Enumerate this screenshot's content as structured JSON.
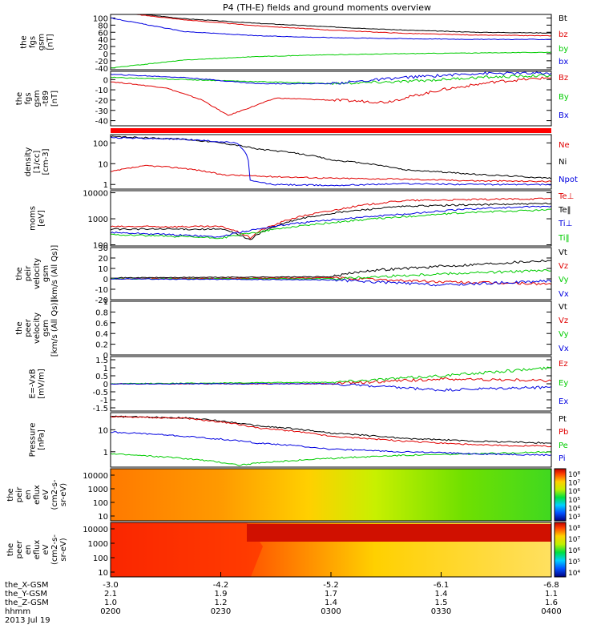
{
  "title": "P4 (TH-E) fields and ground moments overview",
  "colors": {
    "black": "#000000",
    "red": "#e00000",
    "green": "#00cc00",
    "blue": "#0000e0",
    "band": "#ff0000"
  },
  "chart_data": [
    {
      "id": "p1",
      "type": "line",
      "ylabel": [
        "the",
        "fgs",
        "gsm",
        "[nT]"
      ],
      "ylim": [
        -45,
        110
      ],
      "yticks": [
        100,
        80,
        60,
        40,
        20,
        0,
        -20,
        -40
      ],
      "series": [
        {
          "name": "Bt",
          "color": "black",
          "x": [
            0,
            20,
            40,
            60,
            80,
            100,
            120
          ],
          "y": [
            120,
            98,
            85,
            75,
            66,
            60,
            58
          ]
        },
        {
          "name": "bz",
          "color": "red",
          "x": [
            0,
            20,
            40,
            60,
            80,
            100,
            120
          ],
          "y": [
            118,
            95,
            78,
            66,
            57,
            52,
            50
          ]
        },
        {
          "name": "by",
          "color": "green",
          "x": [
            0,
            20,
            40,
            60,
            80,
            100,
            120
          ],
          "y": [
            -40,
            -18,
            -8,
            -3,
            0,
            2,
            4
          ]
        },
        {
          "name": "bx",
          "color": "blue",
          "x": [
            0,
            20,
            40,
            60,
            80,
            100,
            120
          ],
          "y": [
            100,
            62,
            50,
            45,
            42,
            40,
            40
          ]
        }
      ]
    },
    {
      "id": "p2",
      "type": "line",
      "ylabel": [
        "the",
        "fgs",
        "gsm",
        "-t89",
        "[nT]"
      ],
      "ylim": [
        -45,
        8
      ],
      "yticks": [
        0,
        -10,
        -20,
        -30,
        -40
      ],
      "series": [
        {
          "name": "Bz",
          "color": "red",
          "x": [
            0,
            15,
            25,
            32,
            45,
            60,
            75,
            90,
            105,
            120
          ],
          "y": [
            -2,
            -8,
            -20,
            -35,
            -18,
            -20,
            -22,
            -10,
            -2,
            2
          ]
        },
        {
          "name": "By",
          "color": "green",
          "x": [
            0,
            20,
            40,
            60,
            80,
            100,
            120
          ],
          "y": [
            2,
            0,
            -2,
            -4,
            -2,
            2,
            4
          ]
        },
        {
          "name": "Bx",
          "color": "blue",
          "x": [
            0,
            20,
            40,
            60,
            80,
            100,
            120
          ],
          "y": [
            5,
            2,
            -4,
            -4,
            2,
            6,
            6
          ]
        }
      ]
    },
    {
      "id": "p3",
      "type": "line",
      "ylabel": [
        "density",
        "[1/cc]",
        "[cm-3]"
      ],
      "log": true,
      "ylim": [
        0.6,
        250
      ],
      "yticks": [
        100,
        10,
        1
      ],
      "series": [
        {
          "name": "Ne",
          "color": "red",
          "x": [
            0,
            10,
            20,
            30,
            40,
            60,
            80,
            100,
            120
          ],
          "y": [
            4,
            8,
            6,
            3,
            2.5,
            2,
            1.8,
            1.5,
            1.4
          ]
        },
        {
          "name": "Ni",
          "color": "black",
          "x": [
            0,
            20,
            40,
            60,
            80,
            100,
            120
          ],
          "y": [
            200,
            150,
            50,
            15,
            5,
            3,
            2
          ]
        },
        {
          "name": "Npot",
          "color": "blue",
          "x": [
            0,
            20,
            34,
            38,
            44,
            60,
            80,
            100,
            120
          ],
          "y": [
            180,
            150,
            100,
            1.5,
            1,
            0.9,
            1.1,
            1,
            1
          ]
        }
      ]
    },
    {
      "id": "p4",
      "type": "line",
      "ylabel": [
        "moms",
        "[eV]"
      ],
      "log": true,
      "ylim": [
        90,
        12000
      ],
      "yticks": [
        10000,
        1000,
        100
      ],
      "series": [
        {
          "name": "Te⊥",
          "color": "red",
          "x": [
            0,
            30,
            38,
            45,
            60,
            80,
            100,
            120
          ],
          "y": [
            500,
            500,
            180,
            600,
            2000,
            5000,
            5500,
            6000
          ]
        },
        {
          "name": "Te‖",
          "color": "black",
          "x": [
            0,
            30,
            38,
            45,
            60,
            80,
            100,
            120
          ],
          "y": [
            400,
            400,
            150,
            500,
            1600,
            3000,
            3500,
            3800
          ]
        },
        {
          "name": "Ti⊥",
          "color": "blue",
          "x": [
            0,
            30,
            40,
            60,
            80,
            100,
            120
          ],
          "y": [
            300,
            200,
            400,
            900,
            1500,
            2500,
            3000
          ]
        },
        {
          "name": "Ti‖",
          "color": "green",
          "x": [
            0,
            30,
            40,
            60,
            80,
            100,
            120
          ],
          "y": [
            250,
            180,
            300,
            700,
            1200,
            1800,
            2200
          ]
        }
      ]
    },
    {
      "id": "p5",
      "type": "line",
      "ylabel": [
        "the",
        "peir",
        "velocity",
        "gsm",
        "[km/s (All Qs)]"
      ],
      "ylim": [
        -20,
        30
      ],
      "yticks": [
        30,
        20,
        10,
        0,
        -10,
        -20
      ],
      "series": [
        {
          "name": "Vt",
          "color": "black",
          "x": [
            0,
            60,
            70,
            90,
            120
          ],
          "y": [
            1,
            2,
            8,
            12,
            18
          ]
        },
        {
          "name": "Vz",
          "color": "red",
          "x": [
            0,
            60,
            90,
            120
          ],
          "y": [
            0,
            1,
            -3,
            -5
          ]
        },
        {
          "name": "Vy",
          "color": "green",
          "x": [
            0,
            60,
            90,
            120
          ],
          "y": [
            0,
            0,
            5,
            8
          ]
        },
        {
          "name": "Vx",
          "color": "blue",
          "x": [
            0,
            60,
            90,
            120
          ],
          "y": [
            0,
            -1,
            -6,
            -2
          ]
        }
      ]
    },
    {
      "id": "p6",
      "type": "line",
      "ylabel": [
        "the",
        "peer",
        "velocity",
        "gsm",
        "[km/s (All Qs)]"
      ],
      "ylim": [
        0,
        1
      ],
      "yticks": [
        1.0,
        0.8,
        0.6,
        0.4,
        0.2,
        0.0
      ],
      "series": [
        {
          "name": "Vt",
          "color": "black",
          "x": [],
          "y": []
        },
        {
          "name": "Vz",
          "color": "red",
          "x": [],
          "y": []
        },
        {
          "name": "Vy",
          "color": "green",
          "x": [],
          "y": []
        },
        {
          "name": "Vx",
          "color": "blue",
          "x": [],
          "y": []
        }
      ]
    },
    {
      "id": "p7",
      "type": "line",
      "ylabel": [
        "E=-VxB",
        "[mV/m]"
      ],
      "ylim": [
        -1.7,
        1.7
      ],
      "yticks": [
        1.5,
        1.0,
        0.5,
        0.0,
        -0.5,
        -1.0,
        -1.5
      ],
      "series": [
        {
          "name": "Ez",
          "color": "red",
          "x": [
            0,
            60,
            90,
            120
          ],
          "y": [
            0,
            0,
            0.3,
            0.2
          ]
        },
        {
          "name": "Ey",
          "color": "green",
          "x": [
            0,
            60,
            90,
            120
          ],
          "y": [
            0,
            0.1,
            0.5,
            1.0
          ]
        },
        {
          "name": "Ex",
          "color": "blue",
          "x": [
            0,
            60,
            90,
            120
          ],
          "y": [
            0,
            0,
            -0.4,
            -0.2
          ]
        }
      ]
    },
    {
      "id": "p8",
      "type": "line",
      "ylabel": [
        "Pressure",
        "[nPa]"
      ],
      "log": true,
      "ylim": [
        0.2,
        60
      ],
      "yticks": [
        10,
        1
      ],
      "series": [
        {
          "name": "Pt",
          "color": "black",
          "x": [
            0,
            20,
            40,
            60,
            80,
            100,
            120
          ],
          "y": [
            40,
            35,
            15,
            7,
            4,
            3,
            2.5
          ]
        },
        {
          "name": "Pb",
          "color": "red",
          "x": [
            0,
            20,
            40,
            60,
            80,
            100,
            120
          ],
          "y": [
            40,
            33,
            12,
            5,
            3,
            2,
            1.8
          ]
        },
        {
          "name": "Pe",
          "color": "green",
          "x": [
            0,
            20,
            35,
            40,
            60,
            80,
            100,
            120
          ],
          "y": [
            0.8,
            0.5,
            0.25,
            0.3,
            0.5,
            0.7,
            0.8,
            1.0
          ]
        },
        {
          "name": "Pi",
          "color": "blue",
          "x": [
            0,
            20,
            40,
            60,
            80,
            100,
            120
          ],
          "y": [
            8,
            5,
            2.5,
            1.3,
            1,
            0.8,
            0.7
          ]
        }
      ]
    },
    {
      "id": "p9",
      "type": "heatmap",
      "ylabel": [
        "the",
        "peir",
        "en",
        "eflux",
        "eV",
        "(cm2-s-",
        "sr-eV)"
      ],
      "yticks": [
        "10000",
        "1000",
        "100",
        "10"
      ],
      "colorbar_ticks": [
        "10⁸",
        "10⁷",
        "10⁶",
        "10⁵",
        "10⁴",
        "10³"
      ]
    },
    {
      "id": "p10",
      "type": "heatmap",
      "ylabel": [
        "the",
        "peer",
        "en",
        "eflux",
        "eV",
        "(cm2-s-",
        "sr-eV)"
      ],
      "yticks": [
        "10000",
        "1000",
        "100",
        "10"
      ],
      "colorbar_ticks": [
        "10⁸",
        "10⁷",
        "10⁶",
        "10⁵",
        "10⁴"
      ]
    }
  ],
  "xaxis": {
    "rows": [
      {
        "label": "the_X-GSM",
        "values": [
          "-3.0",
          "-4.2",
          "-5.2",
          "-6.1",
          "-6.8"
        ]
      },
      {
        "label": "the_Y-GSM",
        "values": [
          "2.1",
          "1.9",
          "1.7",
          "1.4",
          "1.1"
        ]
      },
      {
        "label": "the_Z-GSM",
        "values": [
          "1.0",
          "1.2",
          "1.4",
          "1.5",
          "1.6"
        ]
      },
      {
        "label": "hhmm",
        "values": [
          "0200",
          "0230",
          "0300",
          "0330",
          "0400"
        ]
      }
    ],
    "date": "2013 Jul 19"
  }
}
